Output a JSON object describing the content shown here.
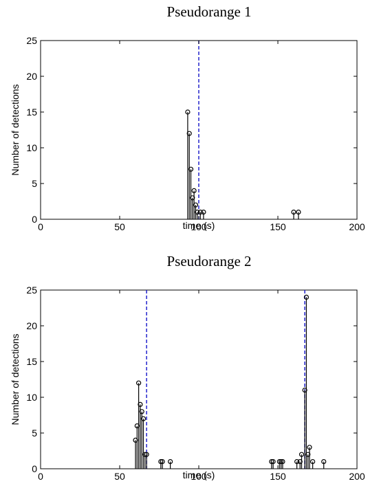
{
  "chart_data": [
    {
      "type": "stem",
      "title": "Pseudorange 1",
      "xlabel": "time (s)",
      "ylabel": "Number of detections",
      "xlim": [
        0,
        200
      ],
      "ylim": [
        0,
        25
      ],
      "xticks": [
        0,
        50,
        100,
        150,
        200
      ],
      "yticks": [
        0,
        5,
        10,
        15,
        20,
        25
      ],
      "grid": false,
      "colors": {
        "stem": "#000000",
        "reference_line": "#2222cc"
      },
      "reference_lines": [
        100
      ],
      "points": [
        {
          "x": 93,
          "y": 15
        },
        {
          "x": 94,
          "y": 12
        },
        {
          "x": 95,
          "y": 7
        },
        {
          "x": 96,
          "y": 3
        },
        {
          "x": 97,
          "y": 4
        },
        {
          "x": 98,
          "y": 2
        },
        {
          "x": 99,
          "y": 1
        },
        {
          "x": 101,
          "y": 1
        },
        {
          "x": 103,
          "y": 1
        },
        {
          "x": 160,
          "y": 1
        },
        {
          "x": 163,
          "y": 1
        }
      ]
    },
    {
      "type": "stem",
      "title": "Pseudorange 2",
      "xlabel": "time (s)",
      "ylabel": "Number of detections",
      "xlim": [
        0,
        200
      ],
      "ylim": [
        0,
        25
      ],
      "xticks": [
        0,
        50,
        100,
        150,
        200
      ],
      "yticks": [
        0,
        5,
        10,
        15,
        20,
        25
      ],
      "grid": false,
      "colors": {
        "stem": "#000000",
        "reference_line": "#2222cc"
      },
      "reference_lines": [
        67,
        167
      ],
      "points": [
        {
          "x": 60,
          "y": 4
        },
        {
          "x": 61,
          "y": 6
        },
        {
          "x": 62,
          "y": 12
        },
        {
          "x": 63,
          "y": 9
        },
        {
          "x": 64,
          "y": 8
        },
        {
          "x": 65,
          "y": 7
        },
        {
          "x": 66,
          "y": 2
        },
        {
          "x": 67,
          "y": 2
        },
        {
          "x": 76,
          "y": 1
        },
        {
          "x": 77,
          "y": 1
        },
        {
          "x": 82,
          "y": 1
        },
        {
          "x": 146,
          "y": 1
        },
        {
          "x": 147,
          "y": 1
        },
        {
          "x": 151,
          "y": 1
        },
        {
          "x": 152,
          "y": 1
        },
        {
          "x": 153,
          "y": 1
        },
        {
          "x": 162,
          "y": 1
        },
        {
          "x": 164,
          "y": 1
        },
        {
          "x": 165,
          "y": 2
        },
        {
          "x": 167,
          "y": 11
        },
        {
          "x": 168,
          "y": 24
        },
        {
          "x": 169,
          "y": 2
        },
        {
          "x": 170,
          "y": 3
        },
        {
          "x": 172,
          "y": 1
        },
        {
          "x": 179,
          "y": 1
        }
      ]
    }
  ]
}
